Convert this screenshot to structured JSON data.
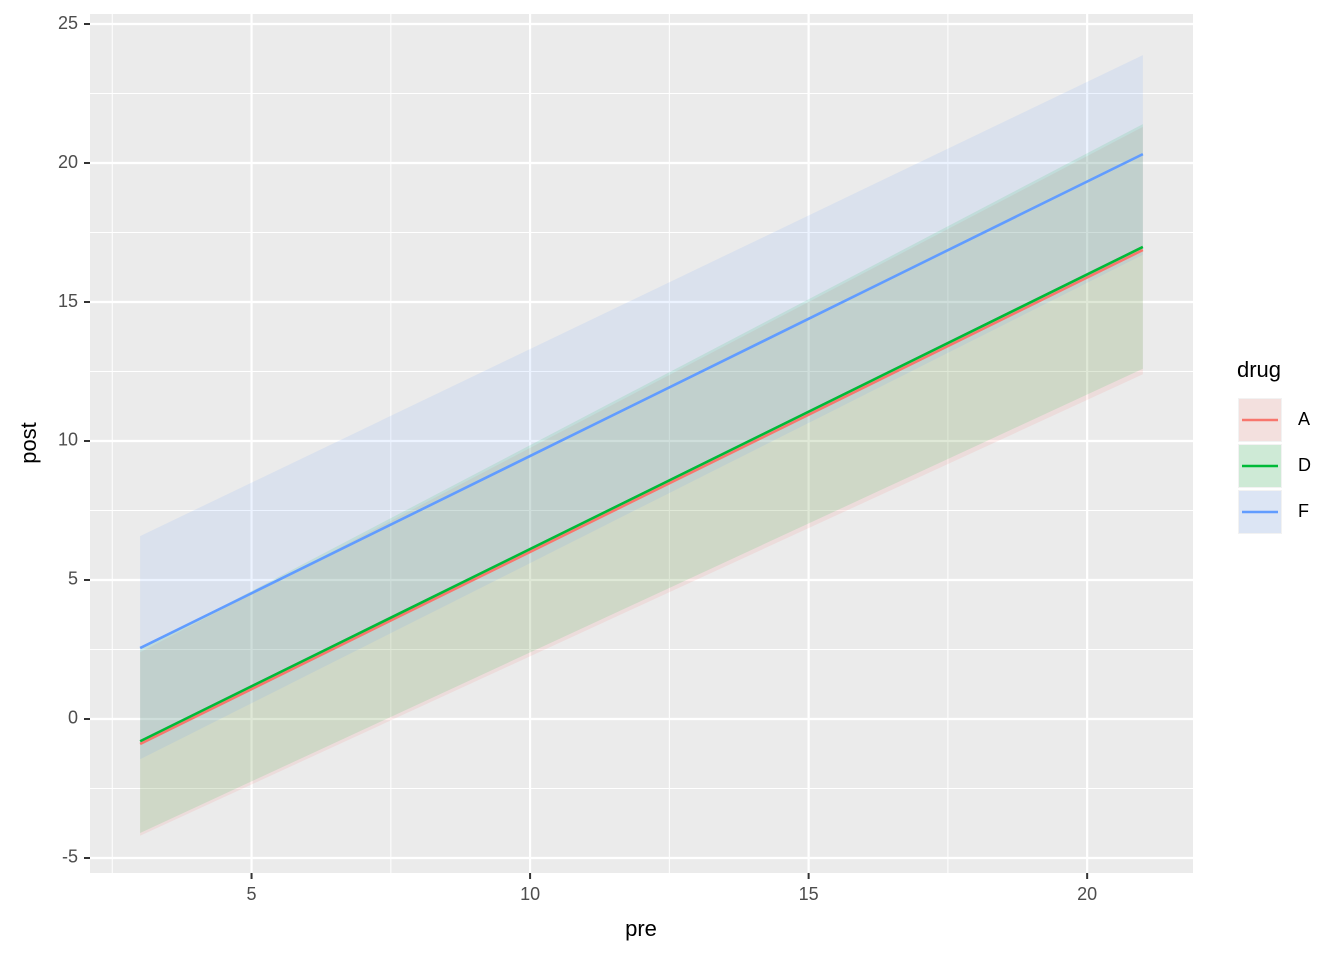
{
  "chart_data": {
    "type": "line",
    "x_label": "pre",
    "y_label": "post",
    "legend_title": "drug",
    "x": [
      3,
      21
    ],
    "series": [
      {
        "name": "A",
        "color": "#F8766D",
        "values": [
          -0.9,
          16.87
        ],
        "lower": [
          -4.2,
          12.4
        ],
        "upper": [
          2.4,
          21.3
        ]
      },
      {
        "name": "D",
        "color": "#00BA38",
        "values": [
          -0.8,
          16.98
        ],
        "lower": [
          -4.1,
          12.6
        ],
        "upper": [
          2.5,
          21.4
        ]
      },
      {
        "name": "F",
        "color": "#619CFF",
        "values": [
          2.55,
          20.32
        ],
        "lower": [
          -1.45,
          16.7
        ],
        "upper": [
          6.58,
          23.88
        ]
      }
    ],
    "xlim": [
      2.1,
      21.9
    ],
    "ylim": [
      -5.54,
      25.36
    ],
    "xticks": [
      5,
      10,
      15,
      20
    ],
    "yticks": [
      -5,
      0,
      5,
      10,
      15,
      20,
      25
    ],
    "minor_xticks": [
      2.5,
      7.5,
      12.5,
      17.5
    ],
    "minor_yticks": [
      -2.5,
      2.5,
      7.5,
      12.5,
      17.5,
      22.5
    ],
    "grid": true,
    "legend": "right"
  }
}
